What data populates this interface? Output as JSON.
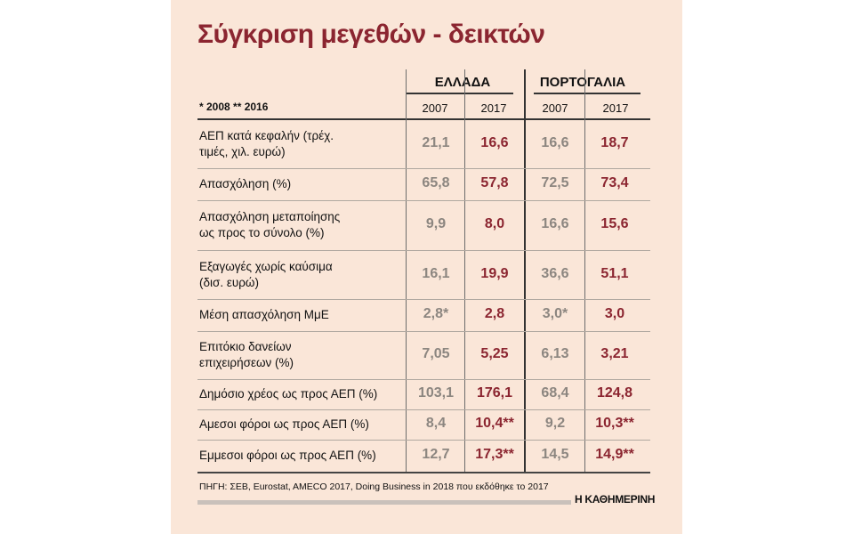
{
  "title": "Σύγκριση μεγεθών - δεικτών",
  "note": "* 2008  ** 2016",
  "countries": [
    "ΕΛΛΑΔΑ",
    "ΠΟΡΤΟΓΑΛΙΑ"
  ],
  "years": [
    "2007",
    "2017",
    "2007",
    "2017"
  ],
  "rows": [
    {
      "label": "ΑΕΠ κατά κεφαλήν (τρέχ. τιμές, χιλ. ευρώ)",
      "values": [
        "21,1",
        "16,6",
        "16,6",
        "18,7"
      ]
    },
    {
      "label": "Απασχόληση (%)",
      "values": [
        "65,8",
        "57,8",
        "72,5",
        "73,4"
      ]
    },
    {
      "label": "Απασχόληση μεταποίησης ως προς το σύνολο (%)",
      "values": [
        "9,9",
        "8,0",
        "16,6",
        "15,6"
      ]
    },
    {
      "label": "Εξαγωγές χωρίς καύσιμα (δισ. ευρώ)",
      "values": [
        "16,1",
        "19,9",
        "36,6",
        "51,1"
      ]
    },
    {
      "label": "Μέση απασχόληση ΜμΕ",
      "values": [
        "2,8*",
        "2,8",
        "3,0*",
        "3,0"
      ]
    },
    {
      "label": "Επιτόκιο δανείων επιχειρήσεων (%)",
      "values": [
        "7,05",
        "5,25",
        "6,13",
        "3,21"
      ]
    },
    {
      "label": "Δημόσιο χρέος ως προς ΑΕΠ (%)",
      "values": [
        "103,1",
        "176,1",
        "68,4",
        "124,8"
      ]
    },
    {
      "label": "Αμεσοι φόροι ως προς ΑΕΠ (%)",
      "values": [
        "8,4",
        "10,4**",
        "9,2",
        "10,3**"
      ]
    },
    {
      "label": "Εμμεσοι φόροι ως προς ΑΕΠ (%)",
      "values": [
        "12,7",
        "17,3**",
        "14,5",
        "14,9**"
      ]
    }
  ],
  "source": "ΠΗΓΗ: ΣΕΒ, Eurostat, AMECO 2017, Doing Business in 2018 που εκδόθηκε το 2017",
  "brand": "Η ΚΑΘΗΜΕΡΙΝΗ",
  "colors": {
    "background": "#fae6d8",
    "accent": "#8b2530",
    "muted": "#8c8680"
  }
}
